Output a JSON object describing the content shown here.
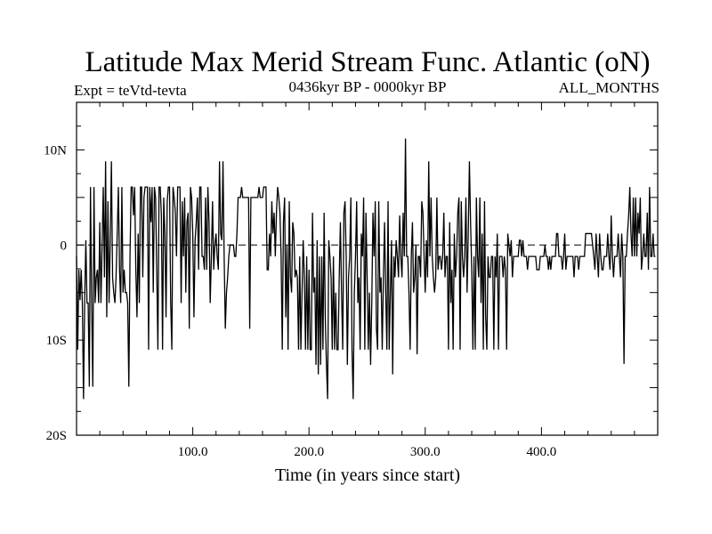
{
  "chart_data": {
    "type": "line",
    "title": "Latitude Max Merid Stream Func. Atlantic (oN)",
    "experiment": "Expt = teVtd-tevta",
    "period": "0436kyr BP - 0000kyr BP",
    "months": "ALL_MONTHS",
    "xlabel": "Time (in years since start)",
    "ylabel": "",
    "xlim": [
      0,
      500
    ],
    "ylim": [
      -20,
      15
    ],
    "x_ticks": [
      100,
      200,
      300,
      400
    ],
    "x_tick_labels": [
      "100.0",
      "200.0",
      "300.0",
      "400.0"
    ],
    "y_ticks": [
      -20,
      -10,
      0,
      10
    ],
    "y_tick_labels": [
      "20S",
      "10S",
      "0",
      "10N"
    ],
    "zero_line": true,
    "legend": "none",
    "series": [
      {
        "name": "Latitude Max Merid Stream Func. Atlantic",
        "x_start": 0,
        "x_step": 1,
        "values": [
          -1.2,
          -11,
          -2.6,
          -5.8,
          -2.6,
          -6.1,
          -16.2,
          -5.8,
          0.5,
          -6.1,
          -6.1,
          -14.9,
          6.1,
          -6.1,
          -14.9,
          6.1,
          -6.1,
          -3.4,
          -2.6,
          -6.1,
          2.4,
          -6.1,
          0,
          6.1,
          -3.4,
          8.8,
          -7.6,
          4.6,
          -6.1,
          0.5,
          8.8,
          -3.4,
          -5,
          -6.1,
          -3.4,
          1.2,
          6.1,
          -2.6,
          -6.1,
          6.1,
          -5,
          -2.6,
          -5,
          -5,
          -6.1,
          -14.9,
          -1.2,
          6.1,
          6.1,
          3.1,
          6.1,
          -2.6,
          -7.6,
          1.2,
          -6.1,
          6.1,
          6.1,
          -3.4,
          5,
          6.1,
          6.1,
          6.1,
          -11,
          6.1,
          2.4,
          6.1,
          -5,
          6.1,
          5,
          -2.6,
          -11,
          6.1,
          6.1,
          3.1,
          -11,
          5,
          1.2,
          -7.6,
          4.6,
          6.1,
          6.1,
          -6.1,
          -11,
          6.1,
          5,
          3.4,
          -1.2,
          6.1,
          6.1,
          6.1,
          -6.1,
          4.6,
          -1.2,
          5,
          -5,
          2.4,
          3.4,
          -8.8,
          6.1,
          5,
          1.2,
          -7.6,
          0.5,
          2.4,
          5,
          -2.6,
          6.1,
          6.1,
          -1.2,
          -1.2,
          -2.6,
          5,
          -2.6,
          6.1,
          2.4,
          -6.1,
          -1.2,
          4.6,
          -2.6,
          0,
          1.2,
          -1.2,
          -2.6,
          8.8,
          1.2,
          0.5,
          8.8,
          -1.2,
          -8.8,
          -5,
          -3.4,
          -1.2,
          0,
          0,
          0,
          0,
          -1.2,
          -1.2,
          1.2,
          5,
          5,
          5,
          6.1,
          5,
          5,
          5,
          5,
          5,
          5,
          -8.8,
          5,
          5,
          5,
          5,
          5,
          5,
          5,
          6.1,
          5,
          5,
          5,
          6.1,
          6.1,
          6.1,
          -2.6,
          -2.6,
          1.2,
          -1.2,
          4.6,
          1.2,
          3.4,
          -1.2,
          3.4,
          6.1,
          5,
          3.4,
          -1.2,
          -11,
          2.4,
          5,
          -7.6,
          0,
          -11,
          4.6,
          -3.4,
          -5,
          2.4,
          1.2,
          -3.4,
          -2.6,
          -3.4,
          -11,
          -1.2,
          -11,
          -5,
          0.5,
          -3.4,
          -11,
          -1.2,
          -11,
          -2.6,
          -11,
          -11,
          3.4,
          -5,
          -3.4,
          -12.6,
          0.5,
          -13.6,
          -1.2,
          -12.6,
          -1.2,
          -11,
          3.4,
          -7.6,
          -12.6,
          -16.2,
          0.5,
          -1.2,
          -3.4,
          -11,
          -1.2,
          -11,
          -5,
          -11,
          -11,
          -3.4,
          2.4,
          -5,
          -11,
          3.4,
          4.6,
          -1.2,
          -12.6,
          -3.4,
          -1.2,
          5,
          -11,
          -16.2,
          -5,
          -1.2,
          4.6,
          -6.1,
          -3.4,
          -11,
          1.2,
          -1.2,
          5,
          -11,
          3.4,
          -3.4,
          -11,
          -5,
          -12.6,
          -6.1,
          3.4,
          -1.2,
          4.6,
          -8.8,
          -11,
          4.6,
          -5,
          -3.4,
          -11,
          -3.4,
          2.4,
          -5,
          -11,
          4.6,
          -11,
          -5,
          0.5,
          -13.6,
          -1.2,
          -3.4,
          0.5,
          -1.2,
          -3.4,
          3.1,
          -1.2,
          -3.4,
          3.4,
          -1.2,
          11.2,
          -1.2,
          -1.2,
          -5,
          -11,
          -1.2,
          2.4,
          -5,
          -3.4,
          0,
          -11.5,
          -1.2,
          -1.2,
          -3.4,
          4.6,
          3.4,
          -1.2,
          -5,
          0.5,
          -3.4,
          8.8,
          -1.2,
          5,
          -1.2,
          -3.4,
          -5,
          -3.4,
          5,
          -2.6,
          -1.2,
          -1.2,
          -2.6,
          -1.2,
          3.4,
          -3.4,
          -1.2,
          -1.2,
          -11,
          2.4,
          -6.1,
          -2.6,
          -11,
          1.2,
          -3.4,
          -1.2,
          3.4,
          5,
          -11,
          4.6,
          -1.2,
          -3.4,
          -1.2,
          5,
          -5,
          1.2,
          8.8,
          2.4,
          -2.6,
          -11,
          -1.2,
          -11,
          5,
          -1.2,
          -3.4,
          5,
          -6.1,
          1.2,
          -11,
          4.6,
          -7.6,
          -11,
          -1.2,
          -3.4,
          -3.4,
          -1.2,
          -1.2,
          -11,
          -1.2,
          -3.4,
          1.2,
          -11,
          -1.2,
          -1.2,
          -1.2,
          -3.4,
          -1.2,
          -2.6,
          -11,
          1.2,
          0,
          -1.2,
          0.5,
          -3.4,
          -1.2,
          -1.2,
          -1.2,
          -1.2,
          -1.2,
          0.5,
          0.5,
          -1.2,
          0.5,
          -1.2,
          -1.2,
          -1.2,
          -2.6,
          -1.2,
          -1.2,
          -1.2,
          -1.2,
          -1.2,
          -1.2,
          -1.2,
          -2.6,
          -2.6,
          -2.6,
          -1.2,
          -1.2,
          -1.2,
          -1.2,
          0,
          -1.2,
          -1.2,
          -2.6,
          -1.2,
          -2.6,
          -1.2,
          -1.2,
          -1.2,
          -1.2,
          1.2,
          1.2,
          -1.2,
          -1.2,
          -1.2,
          -2.6,
          -1.2,
          1.2,
          -2.6,
          -1.2,
          -1.2,
          -1.2,
          -1.2,
          -1.2,
          -1.2,
          -3.4,
          -1.2,
          -1.2,
          -1.2,
          -2.6,
          -1.2,
          -1.2,
          -1.2,
          -1.2,
          -1.2,
          1.2,
          1.2,
          1.2,
          1.2,
          1.2,
          1.2,
          0,
          -1.2,
          -2.6,
          1.2,
          -1.2,
          -3.4,
          1.2,
          -1.2,
          -2.6,
          -2.6,
          -1.2,
          -1.2,
          -1.2,
          1.2,
          -1.2,
          -2.6,
          3.1,
          -1.2,
          -3.4,
          -1.2,
          -1.2,
          -1.2,
          1.2,
          -1.2,
          -3.4,
          1.2,
          -1.2,
          -12.5,
          -1.2,
          -1.2,
          1.2,
          3.1,
          6.1,
          1.2,
          -1.2,
          5,
          -1.2,
          5,
          -1.2,
          3.4,
          1.2,
          5,
          -2.6,
          -1.2,
          1.2,
          -1.2,
          -1.2,
          3.4,
          -2.6,
          6.1,
          -1.2,
          -1.2,
          1.2,
          -1.2,
          -1.2
        ]
      }
    ]
  }
}
